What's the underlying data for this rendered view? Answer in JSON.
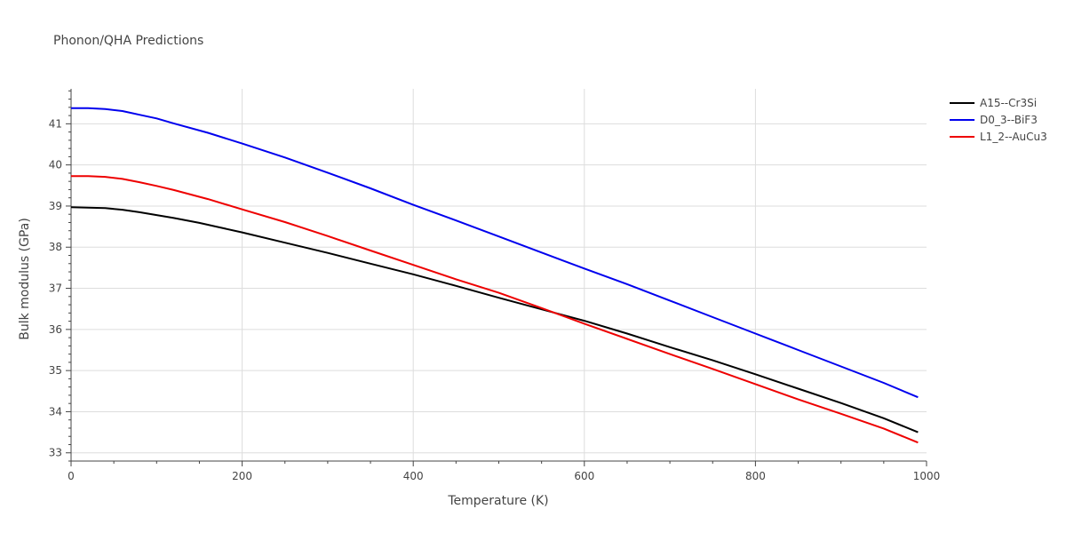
{
  "chart_data": {
    "type": "line",
    "title": "Phonon/QHA Predictions",
    "xlabel": "Temperature (K)",
    "ylabel": "Bulk modulus (GPa)",
    "xlim": [
      0,
      1000
    ],
    "ylim": [
      32.8,
      41.85
    ],
    "xticks": [
      0,
      200,
      400,
      600,
      800,
      1000
    ],
    "xtick_labels": [
      "0",
      "200",
      "400",
      "600",
      "800",
      "1000"
    ],
    "yticks": [
      33,
      34,
      35,
      36,
      37,
      38,
      39,
      40,
      41
    ],
    "ytick_labels": [
      "33",
      "34",
      "35",
      "36",
      "37",
      "38",
      "39",
      "40",
      "41"
    ],
    "grid": true,
    "legend_position": "top-right",
    "series": [
      {
        "name": "A15--Cr3Si",
        "color": "#000000",
        "x": [
          0,
          20,
          40,
          60,
          80,
          100,
          120,
          150,
          200,
          250,
          300,
          350,
          400,
          450,
          500,
          550,
          600,
          650,
          700,
          750,
          800,
          850,
          900,
          950,
          990
        ],
        "y": [
          38.97,
          38.96,
          38.95,
          38.91,
          38.85,
          38.78,
          38.71,
          38.59,
          38.36,
          38.11,
          37.86,
          37.6,
          37.34,
          37.06,
          36.77,
          36.49,
          36.21,
          35.9,
          35.57,
          35.25,
          34.91,
          34.56,
          34.21,
          33.84,
          33.5
        ]
      },
      {
        "name": "D0_3--BiF3",
        "color": "#0000ee",
        "x": [
          0,
          20,
          40,
          60,
          80,
          100,
          120,
          160,
          200,
          250,
          300,
          350,
          400,
          450,
          500,
          550,
          600,
          650,
          700,
          750,
          800,
          850,
          900,
          950,
          990
        ],
        "y": [
          41.38,
          41.38,
          41.36,
          41.31,
          41.22,
          41.13,
          41.01,
          40.78,
          40.52,
          40.18,
          39.81,
          39.43,
          39.03,
          38.65,
          38.26,
          37.87,
          37.48,
          37.1,
          36.7,
          36.3,
          35.9,
          35.5,
          35.1,
          34.7,
          34.35
        ]
      },
      {
        "name": "L1_2--AuCu3",
        "color": "#ee0000",
        "x": [
          0,
          20,
          40,
          60,
          80,
          100,
          120,
          160,
          200,
          250,
          300,
          350,
          400,
          450,
          500,
          550,
          600,
          650,
          700,
          750,
          800,
          850,
          900,
          950,
          990
        ],
        "y": [
          39.73,
          39.73,
          39.71,
          39.66,
          39.58,
          39.49,
          39.39,
          39.17,
          38.92,
          38.61,
          38.27,
          37.92,
          37.57,
          37.22,
          36.89,
          36.52,
          36.14,
          35.77,
          35.4,
          35.04,
          34.67,
          34.3,
          33.95,
          33.59,
          33.25
        ]
      }
    ]
  }
}
